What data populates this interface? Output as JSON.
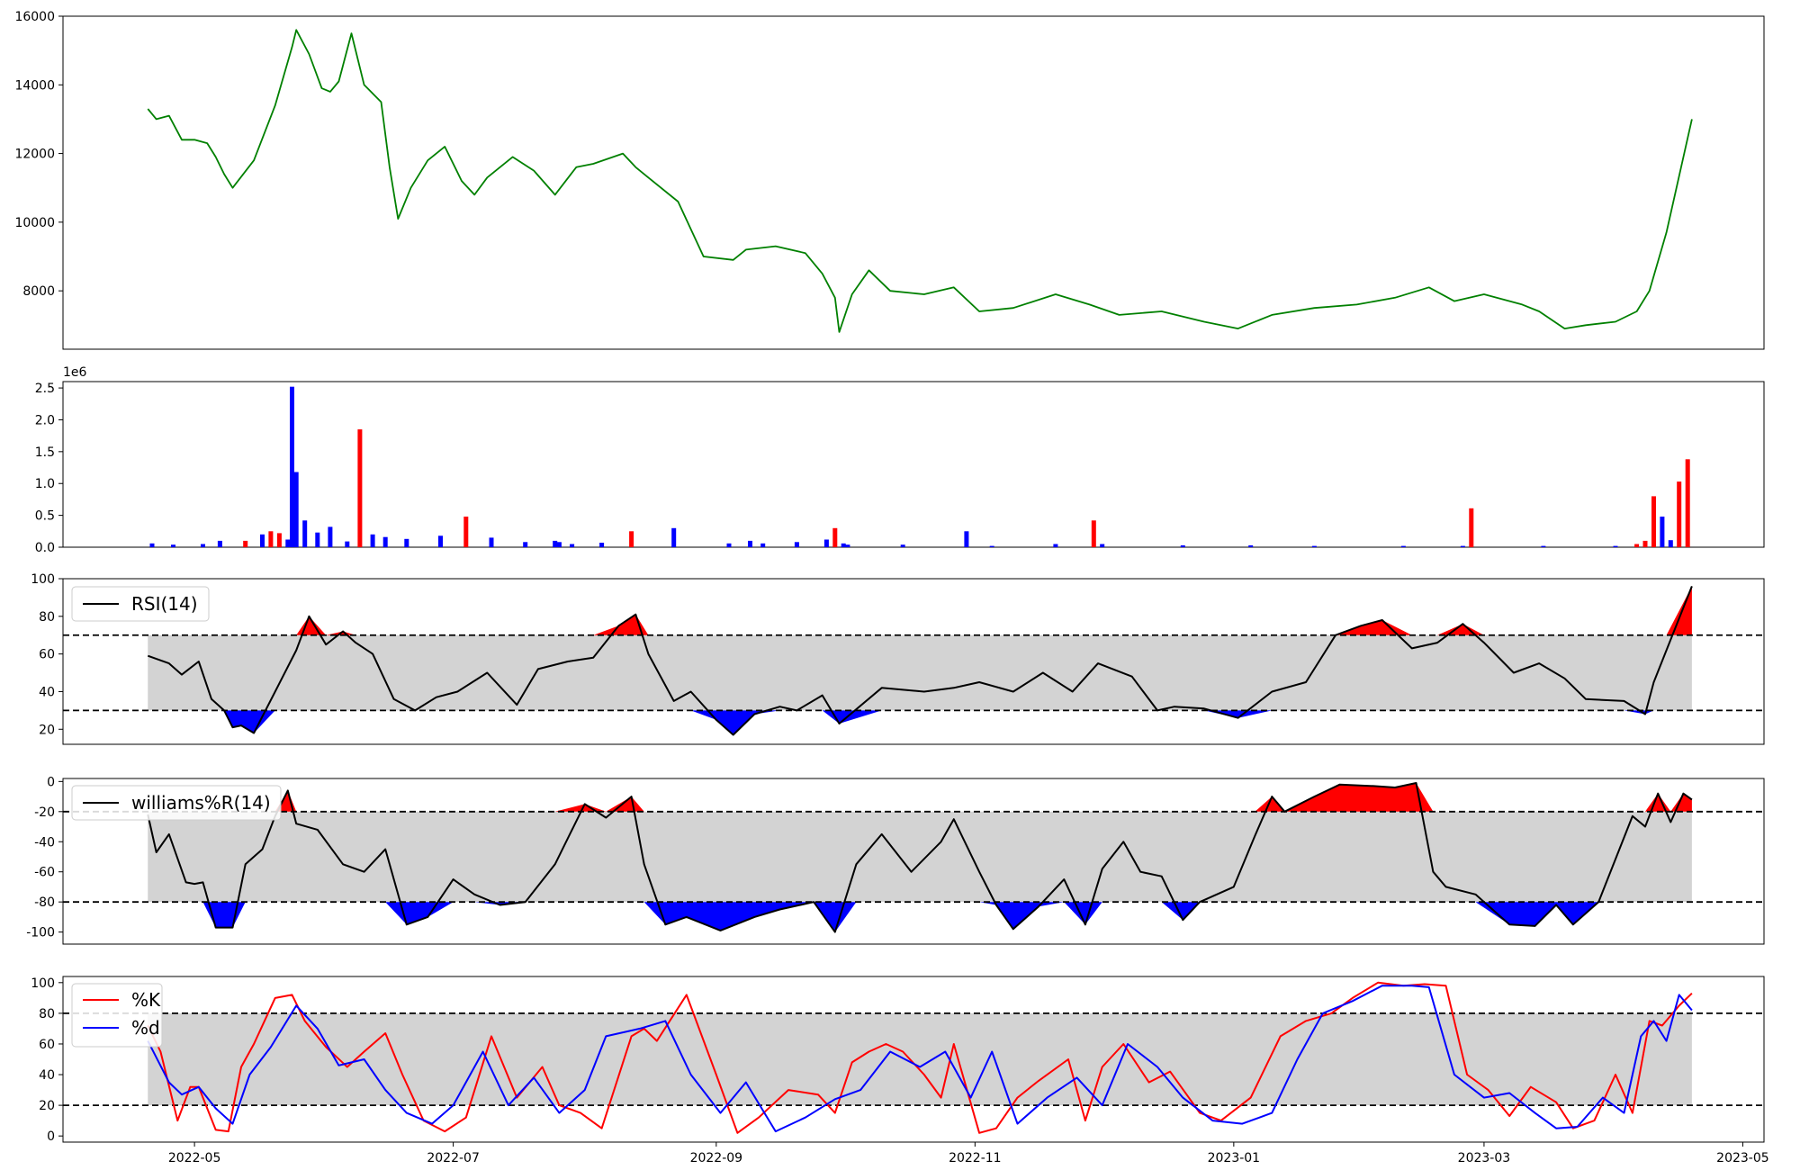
{
  "chart_data": [
    {
      "type": "line",
      "name": "price",
      "color": "#008000",
      "ylim": [
        6300,
        16000
      ],
      "yticks": [
        8000,
        10000,
        12000,
        14000,
        16000
      ],
      "x": [
        "2022-04-20",
        "2022-04-22",
        "2022-04-25",
        "2022-04-28",
        "2022-05-01",
        "2022-05-04",
        "2022-05-06",
        "2022-05-08",
        "2022-05-10",
        "2022-05-15",
        "2022-05-20",
        "2022-05-24",
        "2022-05-25",
        "2022-05-28",
        "2022-05-31",
        "2022-06-02",
        "2022-06-04",
        "2022-06-07",
        "2022-06-10",
        "2022-06-14",
        "2022-06-16",
        "2022-06-18",
        "2022-06-21",
        "2022-06-25",
        "2022-06-29",
        "2022-07-03",
        "2022-07-06",
        "2022-07-09",
        "2022-07-15",
        "2022-07-20",
        "2022-07-25",
        "2022-07-30",
        "2022-08-03",
        "2022-08-10",
        "2022-08-13",
        "2022-08-16",
        "2022-08-23",
        "2022-08-29",
        "2022-09-05",
        "2022-09-08",
        "2022-09-15",
        "2022-09-22",
        "2022-09-26",
        "2022-09-29",
        "2022-09-30",
        "2022-10-03",
        "2022-10-07",
        "2022-10-12",
        "2022-10-20",
        "2022-10-27",
        "2022-11-02",
        "2022-11-10",
        "2022-11-20",
        "2022-11-28",
        "2022-12-05",
        "2022-12-15",
        "2022-12-25",
        "2023-01-02",
        "2023-01-10",
        "2023-01-20",
        "2023-01-30",
        "2023-02-08",
        "2023-02-16",
        "2023-02-22",
        "2023-03-01",
        "2023-03-10",
        "2023-03-14",
        "2023-03-20",
        "2023-03-25",
        "2023-04-01",
        "2023-04-06",
        "2023-04-09",
        "2023-04-13",
        "2023-04-19"
      ],
      "values": [
        13300,
        13000,
        13100,
        12400,
        12400,
        12300,
        11900,
        11400,
        11000,
        11800,
        13400,
        15100,
        15600,
        14900,
        13900,
        13800,
        14100,
        15500,
        14000,
        13500,
        11600,
        10100,
        11000,
        11800,
        12200,
        11200,
        10800,
        11300,
        11900,
        11500,
        10800,
        11600,
        11700,
        12000,
        11600,
        11300,
        10600,
        9000,
        8900,
        9200,
        9300,
        9100,
        8500,
        7800,
        6800,
        7900,
        8600,
        8000,
        7900,
        8100,
        7400,
        7500,
        7900,
        7600,
        7300,
        7400,
        7100,
        6900,
        7300,
        7500,
        7600,
        7800,
        8100,
        7700,
        7900,
        7600,
        7400,
        6900,
        7000,
        7100,
        7400,
        8000,
        9700,
        13000
      ]
    },
    {
      "type": "bar",
      "name": "volume",
      "ylim": [
        0,
        2.6
      ],
      "yticks": [
        0.0,
        0.5,
        1.0,
        1.5,
        2.0,
        2.5
      ],
      "offset_label": "1e6",
      "up_color": "#ff0000",
      "down_color": "#0000ff",
      "x": [
        "2022-04-21",
        "2022-04-26",
        "2022-05-03",
        "2022-05-07",
        "2022-05-13",
        "2022-05-17",
        "2022-05-19",
        "2022-05-21",
        "2022-05-23",
        "2022-05-24",
        "2022-05-25",
        "2022-05-27",
        "2022-05-30",
        "2022-06-02",
        "2022-06-06",
        "2022-06-09",
        "2022-06-12",
        "2022-06-15",
        "2022-06-20",
        "2022-06-28",
        "2022-07-04",
        "2022-07-10",
        "2022-07-18",
        "2022-07-25",
        "2022-07-26",
        "2022-07-29",
        "2022-08-05",
        "2022-08-12",
        "2022-08-22",
        "2022-09-04",
        "2022-09-09",
        "2022-09-12",
        "2022-09-20",
        "2022-09-27",
        "2022-09-29",
        "2022-10-01",
        "2022-10-02",
        "2022-10-15",
        "2022-10-30",
        "2022-11-05",
        "2022-11-20",
        "2022-11-29",
        "2022-12-01",
        "2022-12-20",
        "2023-01-05",
        "2023-01-20",
        "2023-02-10",
        "2023-02-24",
        "2023-02-26",
        "2023-03-15",
        "2023-04-01",
        "2023-04-06",
        "2023-04-08",
        "2023-04-10",
        "2023-04-12",
        "2023-04-14",
        "2023-04-16",
        "2023-04-18"
      ],
      "values": [
        0.06,
        0.04,
        0.05,
        0.1,
        0.1,
        0.2,
        0.25,
        0.22,
        0.12,
        2.52,
        1.18,
        0.42,
        0.23,
        0.32,
        0.09,
        1.85,
        0.2,
        0.16,
        0.13,
        0.18,
        0.48,
        0.15,
        0.08,
        0.1,
        0.08,
        0.05,
        0.07,
        0.25,
        0.3,
        0.06,
        0.1,
        0.06,
        0.08,
        0.12,
        0.3,
        0.06,
        0.04,
        0.04,
        0.25,
        0.02,
        0.05,
        0.42,
        0.05,
        0.03,
        0.03,
        0.02,
        0.02,
        0.02,
        0.61,
        0.02,
        0.02,
        0.05,
        0.1,
        0.8,
        0.48,
        0.11,
        1.03,
        1.38
      ],
      "direction": [
        "down",
        "down",
        "down",
        "down",
        "up",
        "down",
        "up",
        "up",
        "down",
        "down",
        "down",
        "down",
        "down",
        "down",
        "down",
        "up",
        "down",
        "down",
        "down",
        "down",
        "up",
        "down",
        "down",
        "down",
        "down",
        "down",
        "down",
        "up",
        "down",
        "down",
        "down",
        "down",
        "down",
        "down",
        "up",
        "down",
        "down",
        "down",
        "down",
        "down",
        "down",
        "up",
        "down",
        "down",
        "down",
        "down",
        "down",
        "down",
        "up",
        "down",
        "down",
        "up",
        "up",
        "up",
        "down",
        "down",
        "up",
        "up"
      ]
    },
    {
      "type": "line",
      "name": "rsi",
      "ylim": [
        12,
        100
      ],
      "yticks": [
        20,
        40,
        60,
        80,
        100
      ],
      "thresholds": [
        70,
        30
      ],
      "band_color": "#d3d3d3",
      "overbought_color": "#ff0000",
      "oversold_color": "#0000ff",
      "series": [
        {
          "name": "RSI(14)",
          "color": "#000000"
        }
      ],
      "x": [
        "2022-04-20",
        "2022-04-25",
        "2022-04-28",
        "2022-05-02",
        "2022-05-05",
        "2022-05-08",
        "2022-05-10",
        "2022-05-12",
        "2022-05-15",
        "2022-05-20",
        "2022-05-25",
        "2022-05-28",
        "2022-06-01",
        "2022-06-05",
        "2022-06-08",
        "2022-06-12",
        "2022-06-17",
        "2022-06-22",
        "2022-06-27",
        "2022-07-02",
        "2022-07-09",
        "2022-07-16",
        "2022-07-21",
        "2022-07-28",
        "2022-08-03",
        "2022-08-09",
        "2022-08-13",
        "2022-08-16",
        "2022-08-22",
        "2022-08-26",
        "2022-09-01",
        "2022-09-05",
        "2022-09-10",
        "2022-09-16",
        "2022-09-20",
        "2022-09-26",
        "2022-09-30",
        "2022-10-10",
        "2022-10-20",
        "2022-10-27",
        "2022-11-02",
        "2022-11-10",
        "2022-11-17",
        "2022-11-24",
        "2022-11-30",
        "2022-12-08",
        "2022-12-14",
        "2022-12-18",
        "2022-12-25",
        "2023-01-02",
        "2023-01-10",
        "2023-01-18",
        "2023-01-25",
        "2023-01-31",
        "2023-02-05",
        "2023-02-12",
        "2023-02-18",
        "2023-02-24",
        "2023-03-01",
        "2023-03-08",
        "2023-03-14",
        "2023-03-20",
        "2023-03-25",
        "2023-04-03",
        "2023-04-08",
        "2023-04-10",
        "2023-04-13",
        "2023-04-19"
      ],
      "values": [
        59,
        55,
        49,
        56,
        36,
        30,
        21,
        22,
        18,
        40,
        62,
        80,
        65,
        72,
        66,
        60,
        36,
        30,
        37,
        40,
        50,
        33,
        52,
        56,
        58,
        75,
        81,
        60,
        35,
        40,
        25,
        17,
        28,
        32,
        30,
        38,
        23,
        42,
        40,
        42,
        45,
        40,
        50,
        40,
        55,
        48,
        30,
        32,
        31,
        26,
        40,
        45,
        70,
        75,
        78,
        63,
        66,
        76,
        66,
        50,
        55,
        47,
        36,
        35,
        28,
        45,
        62,
        96
      ]
    },
    {
      "type": "line",
      "name": "williams",
      "ylim": [
        -108,
        2
      ],
      "yticks": [
        0,
        -20,
        -40,
        -60,
        -80,
        -100
      ],
      "thresholds": [
        -20,
        -80
      ],
      "band_color": "#d3d3d3",
      "overbought_color": "#ff0000",
      "oversold_color": "#0000ff",
      "series": [
        {
          "name": "williams%R(14)",
          "color": "#000000"
        }
      ],
      "x": [
        "2022-04-20",
        "2022-04-22",
        "2022-04-25",
        "2022-04-29",
        "2022-05-01",
        "2022-05-03",
        "2022-05-06",
        "2022-05-10",
        "2022-05-13",
        "2022-05-17",
        "2022-05-20",
        "2022-05-23",
        "2022-05-25",
        "2022-05-30",
        "2022-06-05",
        "2022-06-10",
        "2022-06-15",
        "2022-06-20",
        "2022-06-25",
        "2022-07-01",
        "2022-07-06",
        "2022-07-12",
        "2022-07-18",
        "2022-07-25",
        "2022-08-01",
        "2022-08-06",
        "2022-08-12",
        "2022-08-15",
        "2022-08-20",
        "2022-08-25",
        "2022-09-02",
        "2022-09-10",
        "2022-09-16",
        "2022-09-24",
        "2022-09-29",
        "2022-10-04",
        "2022-10-10",
        "2022-10-17",
        "2022-10-24",
        "2022-10-27",
        "2022-11-02",
        "2022-11-06",
        "2022-11-10",
        "2022-11-16",
        "2022-11-22",
        "2022-11-27",
        "2022-12-01",
        "2022-12-06",
        "2022-12-10",
        "2022-12-15",
        "2022-12-20",
        "2022-12-24",
        "2023-01-01",
        "2023-01-06",
        "2023-01-10",
        "2023-01-13",
        "2023-01-20",
        "2023-01-26",
        "2023-02-03",
        "2023-02-08",
        "2023-02-13",
        "2023-02-17",
        "2023-02-20",
        "2023-02-27",
        "2023-03-07",
        "2023-03-13",
        "2023-03-18",
        "2023-03-22",
        "2023-03-28",
        "2023-04-05",
        "2023-04-08",
        "2023-04-11",
        "2023-04-14",
        "2023-04-17",
        "2023-04-19"
      ],
      "values": [
        -22,
        -47,
        -35,
        -67,
        -68,
        -67,
        -97,
        -97,
        -55,
        -45,
        -23,
        -6,
        -28,
        -32,
        -55,
        -60,
        -45,
        -95,
        -90,
        -65,
        -75,
        -82,
        -80,
        -55,
        -15,
        -24,
        -10,
        -55,
        -95,
        -90,
        -99,
        -90,
        -85,
        -80,
        -100,
        -55,
        -35,
        -60,
        -40,
        -25,
        -60,
        -82,
        -98,
        -83,
        -65,
        -95,
        -58,
        -40,
        -60,
        -63,
        -92,
        -80,
        -70,
        -36,
        -10,
        -20,
        -10,
        -2,
        -3,
        -4,
        -1,
        -60,
        -70,
        -75,
        -95,
        -96,
        -82,
        -95,
        -80,
        -23,
        -30,
        -8,
        -27,
        -8,
        -12
      ]
    },
    {
      "type": "line",
      "name": "stochastic",
      "ylim": [
        -4,
        104
      ],
      "yticks": [
        0,
        20,
        40,
        60,
        80,
        100
      ],
      "thresholds": [
        80,
        20
      ],
      "band_color": "#d3d3d3",
      "series": [
        {
          "name": "%K",
          "color": "#ff0000",
          "x": [
            "2022-04-20",
            "2022-04-23",
            "2022-04-27",
            "2022-04-30",
            "2022-05-02",
            "2022-05-06",
            "2022-05-09",
            "2022-05-12",
            "2022-05-15",
            "2022-05-20",
            "2022-05-24",
            "2022-05-27",
            "2022-06-01",
            "2022-06-06",
            "2022-06-10",
            "2022-06-15",
            "2022-06-19",
            "2022-06-24",
            "2022-06-29",
            "2022-07-04",
            "2022-07-10",
            "2022-07-16",
            "2022-07-22",
            "2022-07-26",
            "2022-07-31",
            "2022-08-05",
            "2022-08-12",
            "2022-08-15",
            "2022-08-18",
            "2022-08-25",
            "2022-09-01",
            "2022-09-06",
            "2022-09-11",
            "2022-09-18",
            "2022-09-25",
            "2022-09-29",
            "2022-10-03",
            "2022-10-07",
            "2022-10-11",
            "2022-10-15",
            "2022-10-20",
            "2022-10-24",
            "2022-10-27",
            "2022-11-02",
            "2022-11-06",
            "2022-11-11",
            "2022-11-16",
            "2022-11-23",
            "2022-11-27",
            "2022-12-01",
            "2022-12-06",
            "2022-12-12",
            "2022-12-17",
            "2022-12-24",
            "2022-12-29",
            "2023-01-05",
            "2023-01-12",
            "2023-01-18",
            "2023-01-24",
            "2023-01-29",
            "2023-02-04",
            "2023-02-10",
            "2023-02-15",
            "2023-02-20",
            "2023-02-25",
            "2023-03-02",
            "2023-03-07",
            "2023-03-12",
            "2023-03-18",
            "2023-03-22",
            "2023-03-27",
            "2023-04-01",
            "2023-04-05",
            "2023-04-09",
            "2023-04-12",
            "2023-04-16",
            "2023-04-19"
          ],
          "values": [
            72,
            55,
            10,
            32,
            32,
            4,
            3,
            45,
            60,
            90,
            92,
            75,
            58,
            45,
            55,
            67,
            40,
            10,
            3,
            12,
            65,
            25,
            45,
            20,
            15,
            5,
            65,
            70,
            62,
            92,
            40,
            2,
            12,
            30,
            27,
            15,
            48,
            55,
            60,
            55,
            40,
            25,
            60,
            2,
            5,
            25,
            36,
            50,
            10,
            45,
            60,
            35,
            42,
            15,
            10,
            25,
            65,
            75,
            80,
            90,
            100,
            98,
            99,
            98,
            40,
            30,
            13,
            32,
            22,
            5,
            10,
            40,
            15,
            75,
            72,
            85,
            93
          ]
        },
        {
          "name": "%d",
          "color": "#0000ff",
          "x": [
            "2022-04-20",
            "2022-04-25",
            "2022-04-28",
            "2022-05-02",
            "2022-05-06",
            "2022-05-10",
            "2022-05-14",
            "2022-05-19",
            "2022-05-25",
            "2022-05-30",
            "2022-06-04",
            "2022-06-10",
            "2022-06-15",
            "2022-06-20",
            "2022-06-26",
            "2022-07-01",
            "2022-07-08",
            "2022-07-14",
            "2022-07-20",
            "2022-07-26",
            "2022-08-01",
            "2022-08-06",
            "2022-08-14",
            "2022-08-20",
            "2022-08-26",
            "2022-09-02",
            "2022-09-08",
            "2022-09-15",
            "2022-09-22",
            "2022-09-29",
            "2022-10-05",
            "2022-10-12",
            "2022-10-19",
            "2022-10-25",
            "2022-10-31",
            "2022-11-05",
            "2022-11-11",
            "2022-11-18",
            "2022-11-25",
            "2022-12-01",
            "2022-12-07",
            "2022-12-14",
            "2022-12-20",
            "2022-12-27",
            "2023-01-03",
            "2023-01-10",
            "2023-01-16",
            "2023-01-22",
            "2023-01-29",
            "2023-02-05",
            "2023-02-12",
            "2023-02-16",
            "2023-02-22",
            "2023-03-01",
            "2023-03-07",
            "2023-03-13",
            "2023-03-18",
            "2023-03-23",
            "2023-03-29",
            "2023-04-03",
            "2023-04-07",
            "2023-04-10",
            "2023-04-13",
            "2023-04-16",
            "2023-04-19"
          ],
          "values": [
            62,
            35,
            27,
            32,
            18,
            8,
            40,
            58,
            85,
            70,
            46,
            50,
            30,
            15,
            8,
            20,
            55,
            20,
            38,
            15,
            30,
            65,
            70,
            75,
            40,
            15,
            35,
            3,
            12,
            24,
            30,
            55,
            45,
            55,
            25,
            55,
            8,
            25,
            38,
            20,
            60,
            45,
            25,
            10,
            8,
            15,
            50,
            80,
            88,
            98,
            98,
            97,
            40,
            25,
            28,
            15,
            5,
            6,
            25,
            15,
            65,
            75,
            62,
            92,
            82
          ]
        }
      ]
    }
  ],
  "x_axis": {
    "range": [
      "2022-03-31",
      "2023-05-06"
    ],
    "ticks": [
      "2022-05",
      "2022-07",
      "2022-09",
      "2022-11",
      "2023-01",
      "2023-03",
      "2023-05"
    ]
  }
}
